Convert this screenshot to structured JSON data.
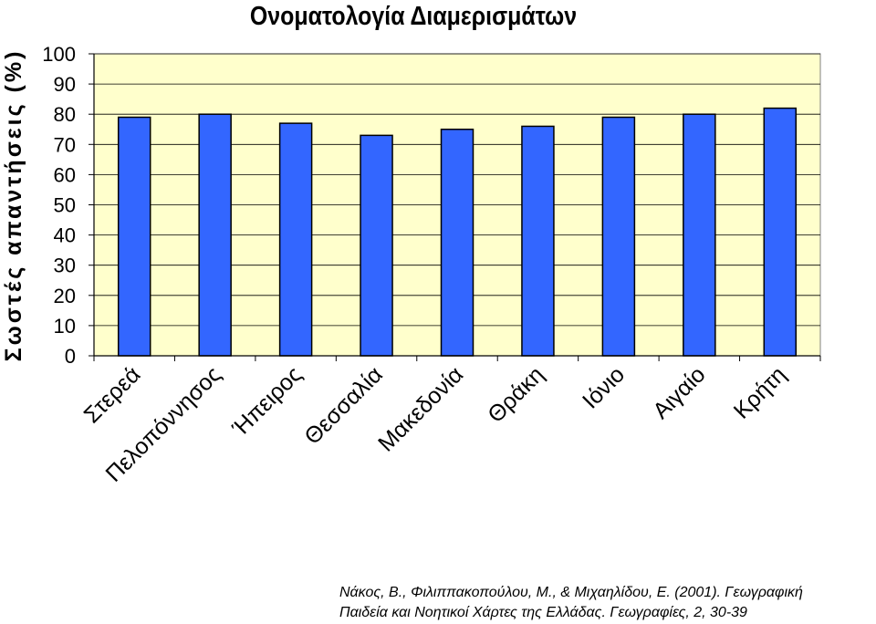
{
  "chart_data": {
    "type": "bar",
    "title": "Ονοματολογία Διαμερισμάτων",
    "xlabel": "",
    "ylabel": "Σωστές απαντήσεις (%)",
    "categories": [
      "Στερεά",
      "Πελοπόννησος",
      "Ήπειρος",
      "Θεσσαλία",
      "Μακεδονία",
      "Θράκη",
      "Ιόνιο",
      "Αιγαίο",
      "Κρήτη"
    ],
    "values": [
      79,
      80,
      77,
      73,
      75,
      76,
      79,
      80,
      82
    ],
    "ylim": [
      0,
      100
    ],
    "yticks": [
      "0",
      "10",
      "20",
      "30",
      "40",
      "50",
      "60",
      "70",
      "80",
      "90",
      "100"
    ],
    "grid": true,
    "legend": "none",
    "colors": {
      "bar": "#3366ff",
      "bar_outline": "#000000",
      "plot_background": "#ffffcc",
      "grid": "#000000"
    }
  },
  "citation": {
    "line1": "Νάκος, Β., Φιλιππακοπούλου, Μ., & Μιχαηλίδου, Ε. (2001). Γεωγραφική",
    "line2": "Παιδεία και Νοητικοί Χάρτες της Ελλάδας. Γεωγραφίες, 2, 30-39"
  }
}
